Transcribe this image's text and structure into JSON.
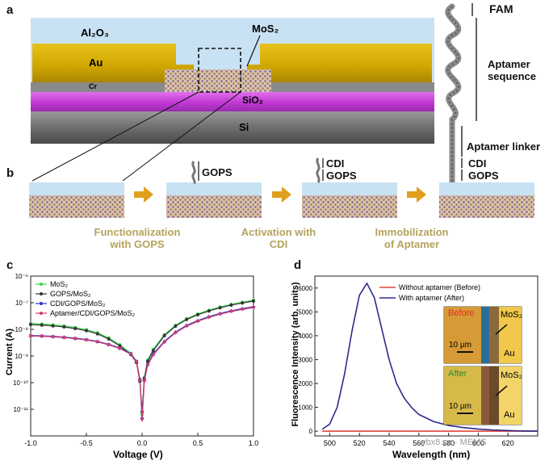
{
  "panel_a": {
    "letter": "a",
    "layers": {
      "al2o3": "Al₂O₃",
      "au": "Au",
      "cr": "Cr",
      "mos2": "MoS₂",
      "sio2": "SiO₂",
      "si": "Si"
    },
    "aptamer_labels": {
      "fam": "FAM",
      "sequence": "Aptamer sequence",
      "linker": "Aptamer linker",
      "cdi": "CDI",
      "gops": "GOPS"
    },
    "colors": {
      "al2o3": "#c8e2f3",
      "au": "#d8b300",
      "cr": "#888888",
      "sio2": "#c940d8",
      "si": "#7a7a7a"
    }
  },
  "panel_b": {
    "letter": "b",
    "labels": {
      "gops1": "GOPS",
      "cdi2": "CDI",
      "gops2": "GOPS",
      "cdi3": "CDI",
      "gops3": "GOPS"
    },
    "steps": [
      {
        "line1": "Functionalization",
        "line2": "with GOPS"
      },
      {
        "line1": "Activation with",
        "line2": "CDI"
      },
      {
        "line1": "Immobilization",
        "line2": "of Aptamer"
      }
    ],
    "colors": {
      "arrow": "#e0a01c",
      "step_text": "#b5a35c"
    }
  },
  "panel_c": {
    "letter": "c",
    "chart_data": {
      "type": "scatter",
      "xlabel": "Voltage (V)",
      "ylabel": "Current (A)",
      "xlim": [
        -1.0,
        1.0
      ],
      "ylim_log10": [
        -12,
        -6
      ],
      "yscale": "log",
      "xticks": [
        -1.0,
        -0.5,
        0.0,
        0.5,
        1.0
      ],
      "xtick_labels": [
        "-1.0",
        "-0.5",
        "0.0",
        "0.5",
        "1.0"
      ],
      "yticks": [
        -12,
        -11,
        -10,
        -9,
        -8,
        -7,
        -6
      ],
      "ytick_labels": [
        "",
        "10⁻¹¹",
        "10⁻¹⁰",
        "10⁻⁹",
        "10⁻⁸",
        "10⁻⁷",
        "10⁻⁶"
      ],
      "legend_position": "top-left",
      "x": [
        -1.0,
        -0.9,
        -0.8,
        -0.7,
        -0.6,
        -0.5,
        -0.4,
        -0.3,
        -0.2,
        -0.1,
        -0.05,
        -0.02,
        0.0,
        0.02,
        0.05,
        0.1,
        0.2,
        0.3,
        0.4,
        0.5,
        0.6,
        0.7,
        0.8,
        0.9,
        1.0
      ],
      "series": [
        {
          "name": "MoS₂",
          "color": "#3cd34a",
          "marker": "circle",
          "log10_values": [
            -7.78,
            -7.8,
            -7.83,
            -7.87,
            -7.93,
            -8.01,
            -8.13,
            -8.32,
            -8.58,
            -8.9,
            -9.2,
            -9.9,
            -11.2,
            -9.8,
            -9.15,
            -8.75,
            -8.2,
            -7.85,
            -7.6,
            -7.42,
            -7.28,
            -7.16,
            -7.06,
            -6.98,
            -6.9
          ]
        },
        {
          "name": "GOPS/MoS₂",
          "color": "#333333",
          "marker": "circle",
          "log10_values": [
            -7.82,
            -7.84,
            -7.87,
            -7.91,
            -7.97,
            -8.05,
            -8.17,
            -8.36,
            -8.62,
            -8.95,
            -9.25,
            -9.95,
            -11.1,
            -9.85,
            -9.2,
            -8.8,
            -8.24,
            -7.88,
            -7.63,
            -7.45,
            -7.31,
            -7.19,
            -7.09,
            -7.01,
            -6.94
          ]
        },
        {
          "name": "CDI/GOPS/MoS₂",
          "color": "#2a36c8",
          "marker": "triangle-up",
          "log10_values": [
            -8.23,
            -8.24,
            -8.26,
            -8.29,
            -8.33,
            -8.38,
            -8.45,
            -8.56,
            -8.7,
            -8.92,
            -9.2,
            -9.85,
            -11.3,
            -9.9,
            -9.3,
            -8.92,
            -8.45,
            -8.1,
            -7.85,
            -7.67,
            -7.52,
            -7.4,
            -7.3,
            -7.22,
            -7.15
          ]
        },
        {
          "name": "Aptamer/CDI/GOPS/MoS₂",
          "color": "#d43b6e",
          "marker": "triangle-down",
          "log10_values": [
            -8.25,
            -8.26,
            -8.28,
            -8.31,
            -8.35,
            -8.4,
            -8.47,
            -8.58,
            -8.72,
            -8.94,
            -9.22,
            -9.9,
            -11.4,
            -9.95,
            -9.35,
            -8.96,
            -8.48,
            -8.13,
            -7.88,
            -7.7,
            -7.55,
            -7.43,
            -7.33,
            -7.25,
            -7.18
          ]
        }
      ]
    }
  },
  "panel_d": {
    "letter": "d",
    "chart_data": {
      "type": "line",
      "xlabel": "Wavelength (nm)",
      "ylabel": "Fluorescence Intensity (arb. units)",
      "xlim": [
        490,
        640
      ],
      "ylim": [
        -200,
        6500
      ],
      "xticks": [
        500,
        520,
        540,
        560,
        580,
        600,
        620
      ],
      "yticks": [
        0,
        1000,
        2000,
        3000,
        4000,
        5000,
        6000
      ],
      "legend_position": "top-right",
      "x": [
        495,
        500,
        505,
        510,
        515,
        520,
        525,
        530,
        535,
        540,
        545,
        550,
        555,
        560,
        570,
        580,
        590,
        600,
        610,
        620,
        630,
        640
      ],
      "series": [
        {
          "name": "Without aptamer (Before)",
          "color": "#e0443c",
          "values": [
            0,
            0,
            0,
            0,
            0,
            0,
            0,
            0,
            0,
            0,
            0,
            0,
            0,
            0,
            0,
            0,
            0,
            0,
            0,
            0,
            0,
            0
          ]
        },
        {
          "name": "With aptamer (After)",
          "color": "#2b2b8c",
          "values": [
            80,
            300,
            1000,
            2400,
            4200,
            5700,
            6200,
            5600,
            4300,
            3000,
            2000,
            1400,
            1000,
            700,
            400,
            240,
            150,
            90,
            50,
            25,
            10,
            0
          ]
        }
      ]
    },
    "insets": {
      "before": {
        "tag": "Before",
        "material": "MoS₂",
        "scale": "10 µm",
        "electrode": "Au"
      },
      "after": {
        "tag": "After",
        "material": "MoS₂",
        "scale": "10 µm",
        "electrode": "Au"
      }
    }
  },
  "watermark": "ybx8.cn · MEMS"
}
